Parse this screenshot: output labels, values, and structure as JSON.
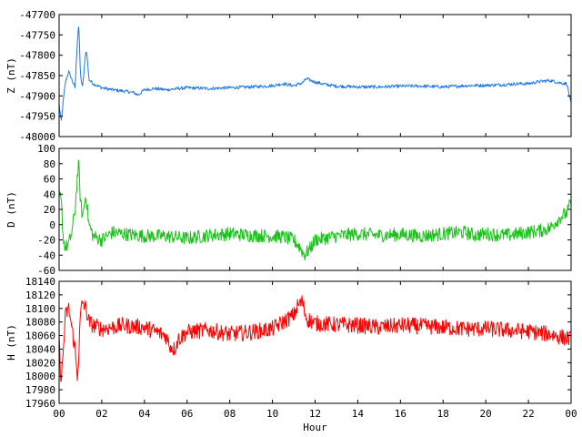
{
  "chart_data": [
    {
      "type": "line",
      "ylabel": "Z (nT)",
      "ylim": [
        -48000,
        -47700
      ],
      "yticks": [
        "-47700",
        "-47750",
        "-47800",
        "-47850",
        "-47900",
        "-47950",
        "-48000"
      ],
      "xlim": [
        0,
        24
      ],
      "grid": false,
      "series": [
        {
          "color": "#1f78e8",
          "x": [
            0,
            0.1,
            0.2,
            0.3,
            0.45,
            0.6,
            0.75,
            0.85,
            0.92,
            1.0,
            1.1,
            1.25,
            1.3,
            1.4,
            1.6,
            1.8,
            2.0,
            2.5,
            3.0,
            3.5,
            3.7,
            4.0,
            4.5,
            5.0,
            6.0,
            7.0,
            8.0,
            9.0,
            10.0,
            10.5,
            11.0,
            11.4,
            11.6,
            11.8,
            12.0,
            12.5,
            13.0,
            14.0,
            15.0,
            16.0,
            17.0,
            18.0,
            19.0,
            20.0,
            21.0,
            21.5,
            22.0,
            22.5,
            23.0,
            23.5,
            23.8,
            24.0
          ],
          "y": [
            -47920,
            -47965,
            -47910,
            -47865,
            -47840,
            -47860,
            -47880,
            -47770,
            -47720,
            -47850,
            -47880,
            -47790,
            -47795,
            -47860,
            -47870,
            -47875,
            -47880,
            -47885,
            -47888,
            -47892,
            -47898,
            -47885,
            -47882,
            -47885,
            -47880,
            -47882,
            -47880,
            -47878,
            -47875,
            -47870,
            -47875,
            -47868,
            -47858,
            -47862,
            -47866,
            -47872,
            -47876,
            -47878,
            -47878,
            -47876,
            -47876,
            -47878,
            -47875,
            -47874,
            -47872,
            -47870,
            -47870,
            -47865,
            -47862,
            -47868,
            -47870,
            -47920
          ]
        }
      ]
    },
    {
      "type": "line",
      "ylabel": "D (nT)",
      "ylim": [
        -60,
        100
      ],
      "yticks": [
        "100",
        "80",
        "60",
        "40",
        "20",
        "0",
        "-20",
        "-40",
        "-60"
      ],
      "xlim": [
        0,
        24
      ],
      "grid": false,
      "series": [
        {
          "color": "#19c219",
          "x": [
            0,
            0.1,
            0.2,
            0.3,
            0.45,
            0.6,
            0.75,
            0.85,
            0.92,
            1.0,
            1.1,
            1.25,
            1.4,
            1.6,
            2.0,
            2.5,
            3.0,
            4.0,
            5.0,
            6.0,
            7.0,
            8.0,
            9.0,
            10.0,
            10.5,
            11.0,
            11.3,
            11.5,
            11.8,
            12.0,
            13.0,
            14.0,
            15.0,
            16.0,
            17.0,
            18.0,
            19.0,
            19.5,
            20.0,
            21.0,
            22.0,
            22.5,
            23.0,
            23.5,
            23.8,
            24.0
          ],
          "y": [
            40,
            30,
            -20,
            -30,
            -25,
            -10,
            20,
            60,
            80,
            30,
            10,
            40,
            0,
            -15,
            -20,
            -10,
            -12,
            -15,
            -15,
            -18,
            -14,
            -12,
            -14,
            -15,
            -16,
            -20,
            -30,
            -40,
            -30,
            -20,
            -15,
            -12,
            -14,
            -13,
            -15,
            -12,
            -10,
            -14,
            -12,
            -14,
            -10,
            -8,
            -5,
            10,
            15,
            30
          ]
        }
      ]
    },
    {
      "type": "line",
      "ylabel": "H (nT)",
      "ylim": [
        17960,
        18140
      ],
      "yticks": [
        "18140",
        "18120",
        "18100",
        "18080",
        "18060",
        "18040",
        "18020",
        "18000",
        "17980",
        "17960"
      ],
      "xticks": [
        "00",
        "02",
        "04",
        "06",
        "08",
        "10",
        "12",
        "14",
        "16",
        "18",
        "20",
        "22",
        "00"
      ],
      "xlabel": "Hour",
      "xlim": [
        0,
        24
      ],
      "grid": false,
      "series": [
        {
          "color": "#ff0000",
          "x": [
            0,
            0.1,
            0.2,
            0.3,
            0.45,
            0.6,
            0.75,
            0.85,
            0.92,
            1.0,
            1.1,
            1.25,
            1.4,
            1.6,
            2.0,
            2.5,
            3.0,
            4.0,
            5.0,
            5.2,
            5.4,
            5.6,
            6.0,
            7.0,
            8.0,
            9.0,
            10.0,
            10.5,
            11.0,
            11.2,
            11.4,
            11.6,
            12.0,
            13.0,
            14.0,
            15.0,
            16.0,
            17.0,
            18.0,
            19.0,
            20.0,
            21.0,
            22.0,
            23.0,
            23.5,
            24.0
          ],
          "y": [
            18050,
            17990,
            18040,
            18090,
            18100,
            18070,
            18040,
            18000,
            18030,
            18090,
            18110,
            18100,
            18080,
            18075,
            18070,
            18072,
            18075,
            18072,
            18060,
            18045,
            18040,
            18055,
            18065,
            18068,
            18062,
            18065,
            18070,
            18080,
            18090,
            18105,
            18110,
            18085,
            18078,
            18076,
            18075,
            18072,
            18075,
            18074,
            18072,
            18070,
            18070,
            18068,
            18066,
            18062,
            18058,
            18055
          ]
        }
      ]
    }
  ]
}
